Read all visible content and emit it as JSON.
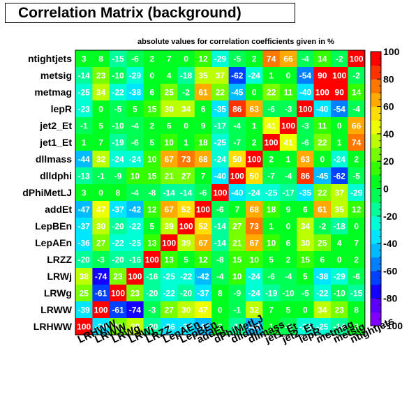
{
  "chart_data": {
    "type": "heatmap",
    "title": "Correlation Matrix (background)",
    "subtitle": "absolute values for correlation coefficients given in %",
    "variables": [
      "LRHWW",
      "LRWW",
      "LRWg",
      "LRWj",
      "LRZZ",
      "LepAEn",
      "LepBEn",
      "addEt",
      "dPhiMetLJ",
      "dlldphi",
      "dllmass",
      "jet1_Et",
      "jet2_Et",
      "lepR",
      "metmag",
      "metsig",
      "ntightjets"
    ],
    "row_labels_top_to_bottom": [
      "ntightjets",
      "metsig",
      "metmag",
      "lepR",
      "jet2_Et",
      "jet1_Et",
      "dllmass",
      "dlldphi",
      "dPhiMetLJ",
      "addEt",
      "LepBEn",
      "LepAEn",
      "LRZZ",
      "LRWj",
      "LRWg",
      "LRWW",
      "LRHWW"
    ],
    "matrix_rows_top_to_bottom": [
      [
        3,
        8,
        -15,
        -6,
        2,
        7,
        0,
        12,
        -29,
        -5,
        2,
        74,
        66,
        -4,
        14,
        -2,
        100
      ],
      [
        -14,
        23,
        -10,
        -29,
        0,
        4,
        -18,
        35,
        37,
        -62,
        -24,
        1,
        0,
        -54,
        90,
        100,
        -2
      ],
      [
        -25,
        34,
        -22,
        -38,
        6,
        25,
        -2,
        61,
        22,
        -45,
        0,
        22,
        11,
        -40,
        100,
        90,
        14
      ],
      [
        -23,
        0,
        -5,
        5,
        15,
        30,
        34,
        6,
        -35,
        86,
        63,
        -6,
        -3,
        100,
        -40,
        -54,
        -4
      ],
      [
        -1,
        5,
        -10,
        -4,
        2,
        6,
        0,
        9,
        -17,
        -4,
        1,
        41,
        100,
        -3,
        11,
        0,
        66
      ],
      [
        1,
        7,
        -19,
        -6,
        5,
        10,
        1,
        18,
        -25,
        -7,
        2,
        100,
        41,
        -6,
        22,
        1,
        74
      ],
      [
        -44,
        32,
        -24,
        -24,
        10,
        67,
        73,
        68,
        -24,
        50,
        100,
        2,
        1,
        63,
        0,
        -24,
        2
      ],
      [
        -13,
        -1,
        -9,
        10,
        15,
        21,
        27,
        7,
        -40,
        100,
        50,
        -7,
        -4,
        86,
        -45,
        -62,
        -5
      ],
      [
        3,
        0,
        8,
        -4,
        -8,
        -14,
        -14,
        -6,
        100,
        -40,
        -24,
        -25,
        -17,
        -35,
        22,
        37,
        -29
      ],
      [
        -47,
        47,
        -37,
        -42,
        12,
        67,
        52,
        100,
        -6,
        7,
        68,
        18,
        9,
        6,
        61,
        35,
        12
      ],
      [
        -37,
        30,
        -20,
        -22,
        5,
        39,
        100,
        52,
        -14,
        27,
        73,
        1,
        0,
        34,
        -2,
        -18,
        0
      ],
      [
        -36,
        27,
        -22,
        -25,
        13,
        100,
        39,
        67,
        -14,
        21,
        67,
        10,
        6,
        30,
        25,
        4,
        7
      ],
      [
        -20,
        -3,
        -20,
        -16,
        100,
        13,
        5,
        12,
        -8,
        15,
        10,
        5,
        2,
        15,
        6,
        0,
        2
      ],
      [
        38,
        -74,
        23,
        100,
        -16,
        -25,
        -22,
        -42,
        -4,
        10,
        -24,
        -6,
        -4,
        5,
        -38,
        -29,
        -6
      ],
      [
        25,
        -61,
        100,
        23,
        -20,
        -22,
        -20,
        -37,
        8,
        -9,
        -24,
        -19,
        -10,
        -5,
        -22,
        -10,
        -15
      ],
      [
        -39,
        100,
        -61,
        -74,
        -3,
        27,
        30,
        47,
        0,
        -1,
        32,
        7,
        5,
        0,
        34,
        23,
        8
      ],
      [
        100,
        -39,
        25,
        38,
        -20,
        -36,
        -37,
        -47,
        3,
        -13,
        -44,
        1,
        -1,
        -23,
        -25,
        -14,
        3
      ]
    ],
    "zrange": [
      -100,
      100
    ],
    "colorbar_ticks": [
      "100",
      "80",
      "60",
      "40",
      "20",
      "0",
      "-20",
      "-40",
      "-60",
      "-80",
      "-100"
    ],
    "colorbar_steps": [
      -95,
      -85,
      -75,
      -65,
      -55,
      -45,
      -35,
      -25,
      -15,
      -5,
      5,
      15,
      25,
      35,
      45,
      55,
      65,
      75,
      85,
      95
    ]
  }
}
